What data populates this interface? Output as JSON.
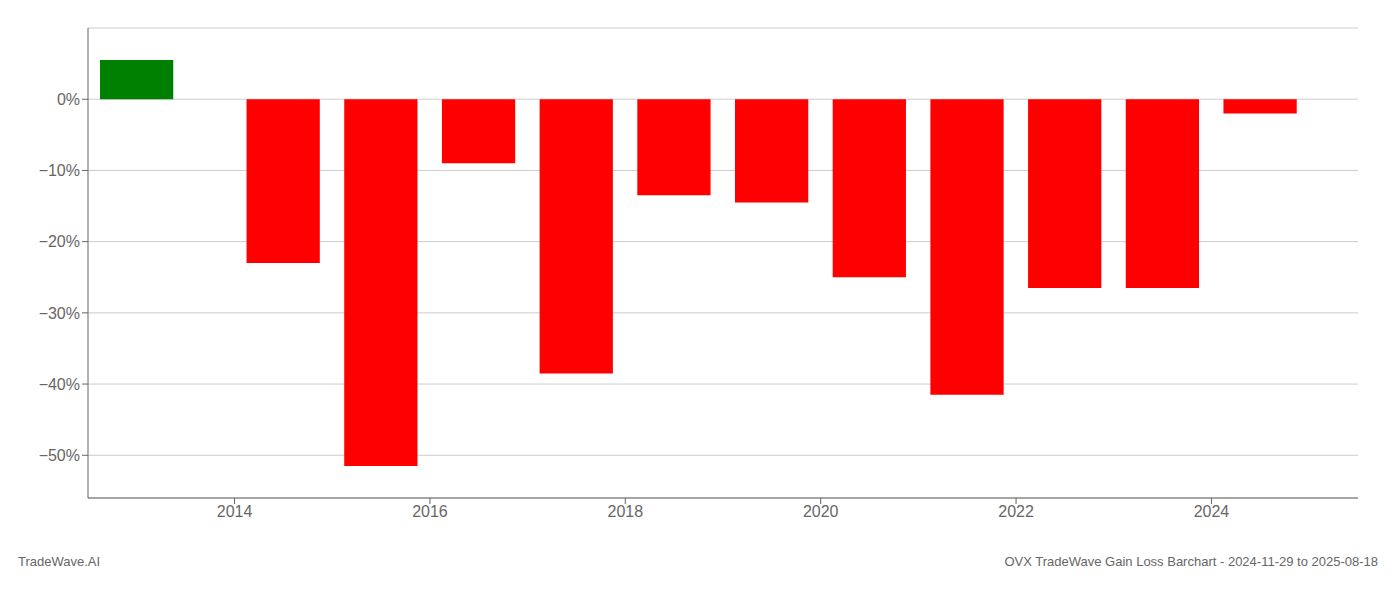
{
  "chart_data": {
    "type": "bar",
    "x": [
      2013.0,
      2014.5,
      2015.5,
      2016.5,
      2017.5,
      2018.5,
      2019.5,
      2020.5,
      2021.5,
      2022.5,
      2023.5,
      2024.5
    ],
    "values": [
      5.5,
      -23.0,
      -51.5,
      -9.0,
      -38.5,
      -13.5,
      -14.5,
      -25.0,
      -41.5,
      -26.5,
      -26.5,
      -2.0
    ],
    "colors": [
      "#008000",
      "#ff0000",
      "#ff0000",
      "#ff0000",
      "#ff0000",
      "#ff0000",
      "#ff0000",
      "#ff0000",
      "#ff0000",
      "#ff0000",
      "#ff0000",
      "#ff0000"
    ],
    "xlim": [
      2012.5,
      2025.5
    ],
    "ylim": [
      -56,
      10
    ],
    "xticks": [
      2014,
      2016,
      2018,
      2020,
      2022,
      2024
    ],
    "yticks": [
      {
        "value": 0,
        "label": "0%"
      },
      {
        "value": -10,
        "label": "−10%"
      },
      {
        "value": -20,
        "label": "−20%"
      },
      {
        "value": -30,
        "label": "−30%"
      },
      {
        "value": -40,
        "label": "−40%"
      },
      {
        "value": -50,
        "label": "−50%"
      }
    ],
    "grid": true,
    "annotations": [
      "TradeWave.AI",
      "OVX TradeWave Gain Loss Barchart - 2024-11-29 to 2025-08-18"
    ]
  }
}
